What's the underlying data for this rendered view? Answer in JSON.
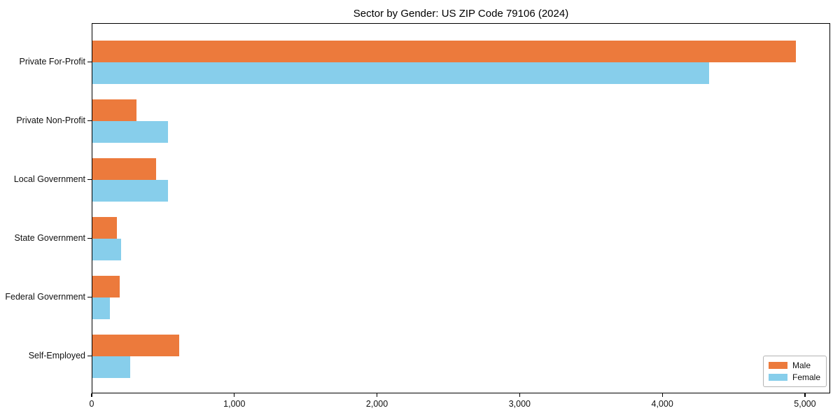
{
  "title": "Sector by Gender: US ZIP Code 79106 (2024)",
  "chart_data": {
    "type": "bar",
    "orientation": "horizontal",
    "title": "Sector by Gender: US ZIP Code 79106 (2024)",
    "xlabel": "",
    "ylabel": "",
    "categories": [
      "Private For-Profit",
      "Private Non-Profit",
      "Local Government",
      "State Government",
      "Federal Government",
      "Self-Employed"
    ],
    "series": [
      {
        "name": "Male",
        "color": "#EC7A3C",
        "values": [
          4930,
          310,
          445,
          170,
          190,
          610
        ]
      },
      {
        "name": "Female",
        "color": "#87CEEB",
        "values": [
          4325,
          530,
          530,
          200,
          120,
          265
        ]
      }
    ],
    "xlim": [
      0,
      5177
    ],
    "xticks": [
      0,
      1000,
      2000,
      3000,
      4000,
      5000
    ],
    "xtick_labels": [
      "0",
      "1,000",
      "2,000",
      "3,000",
      "4,000",
      "5,000"
    ],
    "grid": false,
    "legend": {
      "position": "lower right",
      "entries": [
        "Male",
        "Female"
      ]
    }
  }
}
